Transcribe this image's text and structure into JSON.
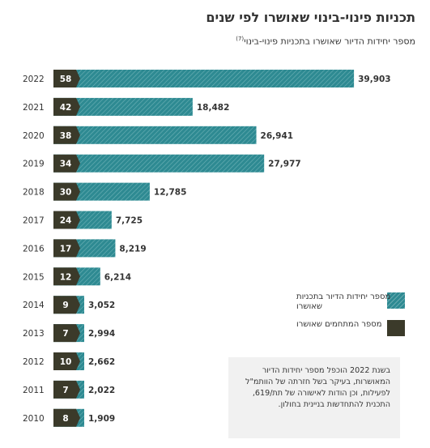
{
  "header": {
    "title": "תכניות פינוי-בינוי שאושרו לפי שנים",
    "subtitle": "מספר יחידות הדיור שאושרו בתכניות פינוי-בינוי",
    "footnote_marker": "(7)"
  },
  "legend": {
    "units_label": "מספר יחידות הדיור בתכניות שאושרו",
    "plans_label": "מספר המתחמים שאושרו"
  },
  "note": {
    "text": "בשנת 2022 הוכפל מספר יחידות הדיור המאושרות, בעיקר בשל חזרתה של הוותמ\"ל לפעילות, וכן הודות לאישורה של תת/619, התכנית להתחדשות בניינית בחולון."
  },
  "colors": {
    "bar": "#2e8a92",
    "count_box": "#3b3a2a",
    "note_bg": "#f1f1f1"
  },
  "chart_data": {
    "type": "bar",
    "orientation": "horizontal",
    "categories": [
      "2022",
      "2021",
      "2020",
      "2019",
      "2018",
      "2017",
      "2016",
      "2015",
      "2014",
      "2013",
      "2012",
      "2011",
      "2010"
    ],
    "series": [
      {
        "name": "מספר יחידות הדיור בתכניות שאושרו",
        "values": [
          39903,
          18482,
          26941,
          27977,
          12785,
          7725,
          8219,
          6214,
          3052,
          2994,
          2662,
          2022,
          1909
        ],
        "labels": [
          "39,903",
          "18,482",
          "26,941",
          "27,977",
          "12,785",
          "7,725",
          "8,219",
          "6,214",
          "3,052",
          "2,994",
          "2,662",
          "2,022",
          "1,909"
        ]
      },
      {
        "name": "מספר המתחמים שאושרו",
        "values": [
          58,
          42,
          38,
          34,
          30,
          24,
          17,
          12,
          9,
          7,
          10,
          7,
          8
        ]
      }
    ],
    "xlim": [
      0,
      40000
    ],
    "grid": false,
    "legend_position": "bottom-right"
  }
}
